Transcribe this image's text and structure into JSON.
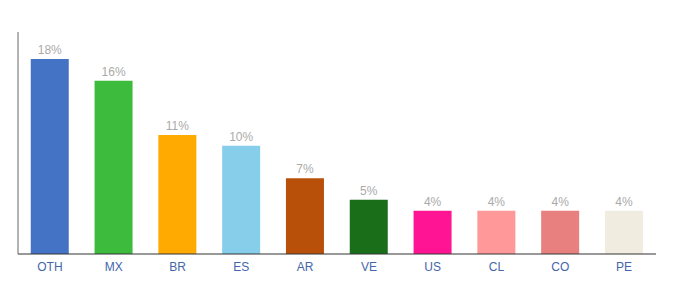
{
  "chart_data": {
    "type": "bar",
    "categories": [
      "OTH",
      "MX",
      "BR",
      "ES",
      "AR",
      "VE",
      "US",
      "CL",
      "CO",
      "PE"
    ],
    "values": [
      18,
      16,
      11,
      10,
      7,
      5,
      4,
      4,
      4,
      4
    ],
    "value_labels": [
      "18%",
      "16%",
      "11%",
      "10%",
      "7%",
      "5%",
      "4%",
      "4%",
      "4%",
      "4%"
    ],
    "colors": [
      "#4472c4",
      "#3dbb3d",
      "#ffaa00",
      "#87ceeb",
      "#b8500a",
      "#1a6e1a",
      "#ff1493",
      "#ff9999",
      "#e88080",
      "#f0ede0"
    ],
    "ylim": [
      0,
      20.5
    ],
    "data_labels": true,
    "tick_labels": "x",
    "grid": false
  }
}
